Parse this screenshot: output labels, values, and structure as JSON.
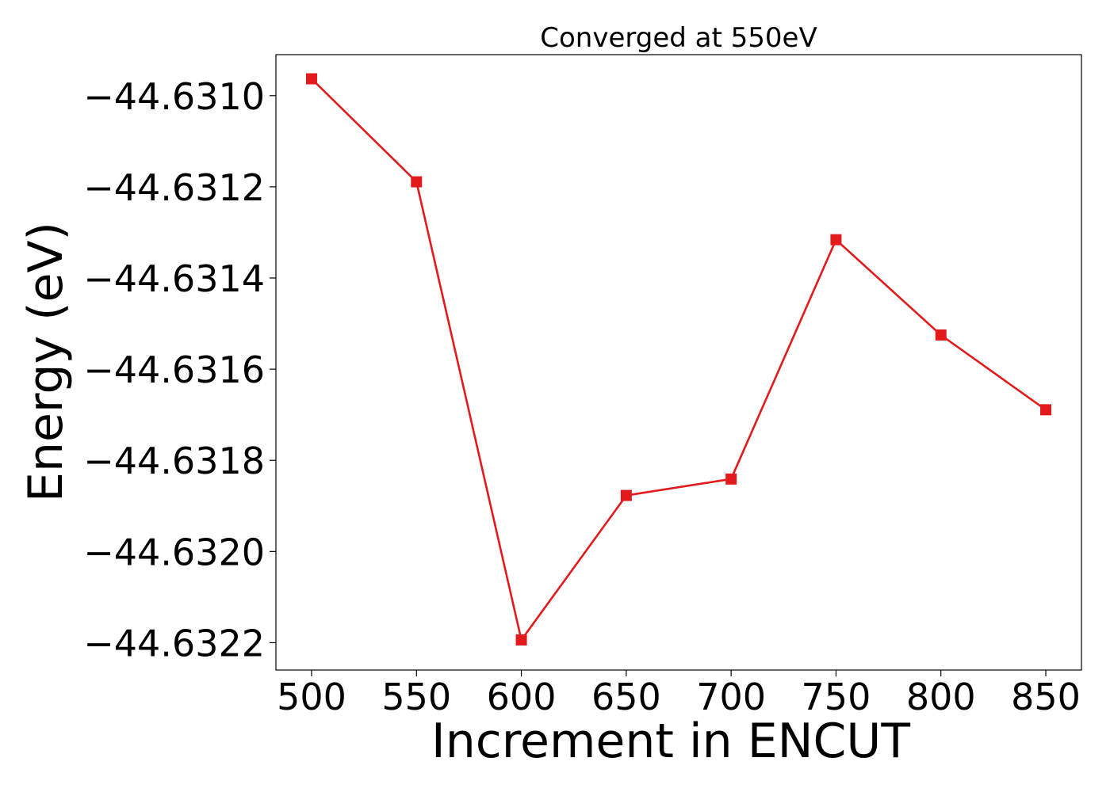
{
  "chart_data": {
    "type": "line",
    "title": "Converged at 550eV",
    "xlabel": "Increment in ENCUT",
    "ylabel": "Energy (eV)",
    "x": [
      500,
      550,
      600,
      650,
      700,
      750,
      800,
      850
    ],
    "xticks": [
      "500",
      "550",
      "600",
      "650",
      "700",
      "750",
      "800",
      "850"
    ],
    "yticks": [
      "−44.6310",
      "−44.6312",
      "−44.6314",
      "−44.6316",
      "−44.6318",
      "−44.6320",
      "−44.6322"
    ],
    "yticks_values": [
      -44.631,
      -44.6312,
      -44.6314,
      -44.6316,
      -44.6318,
      -44.632,
      -44.6322
    ],
    "xlim": [
      483,
      867
    ],
    "ylim": [
      -44.63226,
      -44.63091
    ],
    "grid": false,
    "series": [
      {
        "color": "#e31a1c",
        "marker": "square",
        "values": [
          -44.630963,
          -44.631189,
          -44.632194,
          -44.631877,
          -44.631841,
          -44.631316,
          -44.631525,
          -44.631689
        ]
      }
    ]
  }
}
